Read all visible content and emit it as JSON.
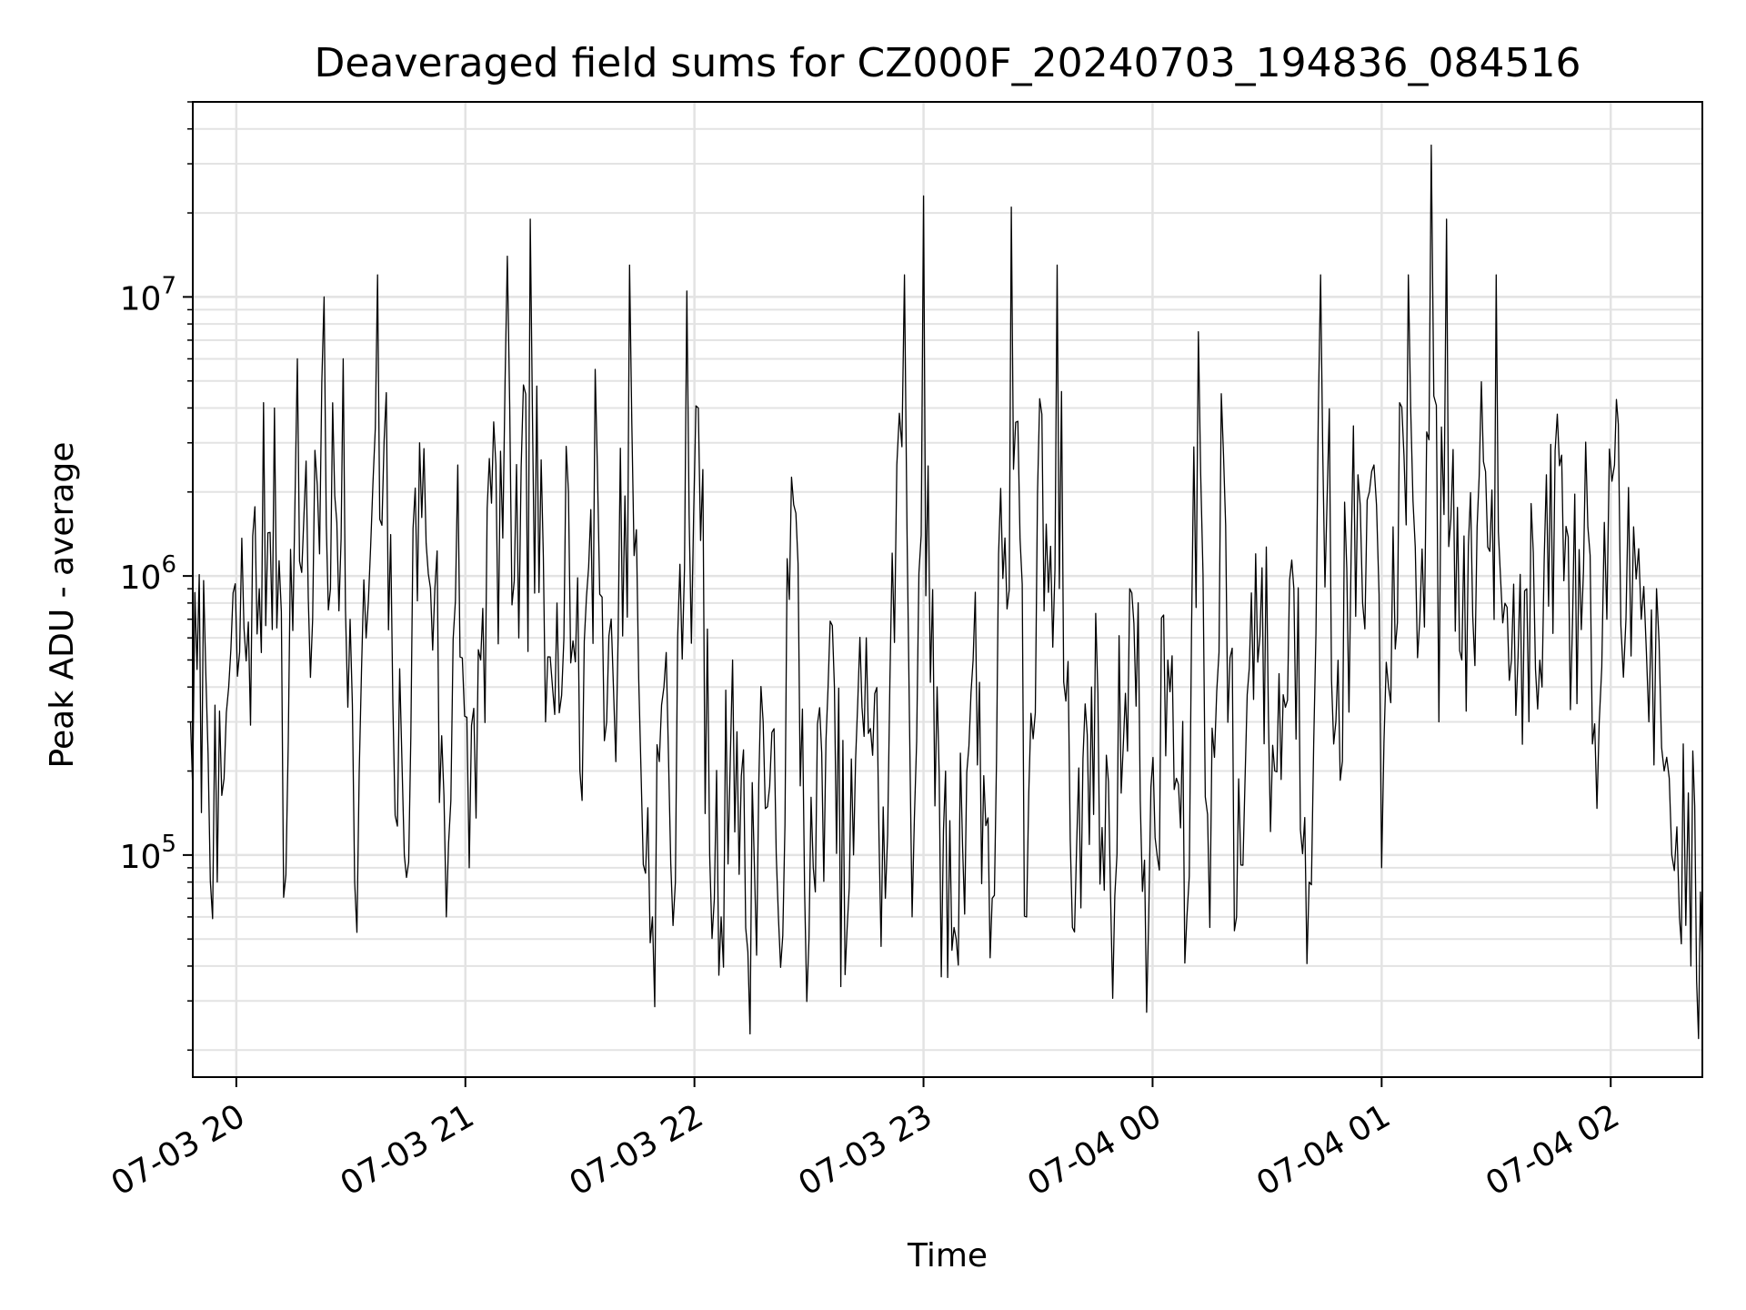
{
  "chart_data": {
    "type": "line",
    "title": "Deaveraged field sums for CZ000F_20240703_194836_084516",
    "xlabel": "Time",
    "ylabel": "Peak ADU - average",
    "yscale": "log",
    "xlim": [
      "2024-07-03 19:48:36",
      "2024-07-04 02:24:00"
    ],
    "ylim": [
      16000,
      50000000
    ],
    "grid": true,
    "legend": "none",
    "x_ticks": [
      {
        "value": "2024-07-03 20:00",
        "label": "07-03 20"
      },
      {
        "value": "2024-07-03 21:00",
        "label": "07-03 21"
      },
      {
        "value": "2024-07-03 22:00",
        "label": "07-03 22"
      },
      {
        "value": "2024-07-03 23:00",
        "label": "07-03 23"
      },
      {
        "value": "2024-07-04 00:00",
        "label": "07-04 00"
      },
      {
        "value": "2024-07-04 01:00",
        "label": "07-04 01"
      },
      {
        "value": "2024-07-04 02:00",
        "label": "07-04 02"
      }
    ],
    "y_ticks": [
      {
        "value": 100000,
        "base": "10",
        "exp": "5"
      },
      {
        "value": 1000000,
        "base": "10",
        "exp": "6"
      },
      {
        "value": 10000000,
        "base": "10",
        "exp": "7"
      }
    ],
    "colors": {
      "line": "#000000",
      "grid": "#e3e3e3",
      "axes": "#000000"
    },
    "series": [
      {
        "points": [
          [
            "2024-07-03 19:48",
            300000
          ],
          [
            "2024-07-03 19:52",
            450000
          ],
          [
            "2024-07-03 19:55",
            80000
          ],
          [
            "2024-07-03 19:58",
            400000
          ],
          [
            "2024-07-03 20:02",
            650000
          ],
          [
            "2024-07-03 20:06",
            900000
          ],
          [
            "2024-07-03 20:10",
            4000000
          ],
          [
            "2024-07-03 20:13",
            85000
          ],
          [
            "2024-07-03 20:16",
            6000000
          ],
          [
            "2024-07-03 20:20",
            700000
          ],
          [
            "2024-07-03 20:23",
            10000000
          ],
          [
            "2024-07-03 20:28",
            6000000
          ],
          [
            "2024-07-03 20:31",
            80000
          ],
          [
            "2024-07-03 20:34",
            600000
          ],
          [
            "2024-07-03 20:37",
            12000000
          ],
          [
            "2024-07-03 20:41",
            350000
          ],
          [
            "2024-07-03 20:44",
            100000
          ],
          [
            "2024-07-03 20:48",
            3000000
          ],
          [
            "2024-07-03 20:52",
            900000
          ],
          [
            "2024-07-03 20:55",
            60000
          ],
          [
            "2024-07-03 20:58",
            2500000
          ],
          [
            "2024-07-03 21:01",
            90000
          ],
          [
            "2024-07-03 21:04",
            500000
          ],
          [
            "2024-07-03 21:08",
            2500000
          ],
          [
            "2024-07-03 21:11",
            14000000
          ],
          [
            "2024-07-03 21:14",
            600000
          ],
          [
            "2024-07-03 21:17",
            19000000
          ],
          [
            "2024-07-03 21:21",
            300000
          ],
          [
            "2024-07-03 21:24",
            800000
          ],
          [
            "2024-07-03 21:27",
            2000000
          ],
          [
            "2024-07-03 21:30",
            200000
          ],
          [
            "2024-07-03 21:34",
            5500000
          ],
          [
            "2024-07-03 21:37",
            300000
          ],
          [
            "2024-07-03 21:40",
            600000
          ],
          [
            "2024-07-03 21:43",
            13000000
          ],
          [
            "2024-07-03 21:46",
            200000
          ],
          [
            "2024-07-03 21:49",
            60000
          ],
          [
            "2024-07-03 21:52",
            400000
          ],
          [
            "2024-07-03 21:55",
            80000
          ],
          [
            "2024-07-03 21:58",
            10500000
          ],
          [
            "2024-07-03 22:01",
            4000000
          ],
          [
            "2024-07-03 22:04",
            100000
          ],
          [
            "2024-07-03 22:07",
            60000
          ],
          [
            "2024-07-03 22:10",
            500000
          ],
          [
            "2024-07-03 22:14",
            45000
          ],
          [
            "2024-07-03 22:18",
            300000
          ],
          [
            "2024-07-03 22:22",
            60000
          ],
          [
            "2024-07-03 22:26",
            1800000
          ],
          [
            "2024-07-03 22:30",
            50000
          ],
          [
            "2024-07-03 22:35",
            400000
          ],
          [
            "2024-07-03 22:40",
            55000
          ],
          [
            "2024-07-03 22:45",
            600000
          ],
          [
            "2024-07-03 22:50",
            70000
          ],
          [
            "2024-07-03 22:53",
            2500000
          ],
          [
            "2024-07-03 22:55",
            12000000
          ],
          [
            "2024-07-03 22:57",
            60000
          ],
          [
            "2024-07-03 23:00",
            23000000
          ],
          [
            "2024-07-03 23:03",
            150000
          ],
          [
            "2024-07-03 23:08",
            55000
          ],
          [
            "2024-07-03 23:13",
            500000
          ],
          [
            "2024-07-03 23:18",
            70000
          ],
          [
            "2024-07-03 23:23",
            21000000
          ],
          [
            "2024-07-03 23:27",
            60000
          ],
          [
            "2024-07-03 23:31",
            3800000
          ],
          [
            "2024-07-03 23:35",
            13000000
          ],
          [
            "2024-07-03 23:39",
            55000
          ],
          [
            "2024-07-03 23:44",
            400000
          ],
          [
            "2024-07-03 23:49",
            70000
          ],
          [
            "2024-07-03 23:54",
            900000
          ],
          [
            "2024-07-03 23:59",
            60000
          ],
          [
            "2024-07-04 00:04",
            500000
          ],
          [
            "2024-07-04 00:09",
            60000
          ],
          [
            "2024-07-04 00:12",
            7500000
          ],
          [
            "2024-07-04 00:15",
            55000
          ],
          [
            "2024-07-04 00:18",
            4500000
          ],
          [
            "2024-07-04 00:22",
            60000
          ],
          [
            "2024-07-04 00:27",
            1200000
          ],
          [
            "2024-07-04 00:32",
            200000
          ],
          [
            "2024-07-04 00:37",
            900000
          ],
          [
            "2024-07-04 00:41",
            80000
          ],
          [
            "2024-07-04 00:44",
            12000000
          ],
          [
            "2024-07-04 00:48",
            300000
          ],
          [
            "2024-07-04 00:52",
            1200000
          ],
          [
            "2024-07-04 00:55",
            800000
          ],
          [
            "2024-07-04 00:58",
            2500000
          ],
          [
            "2024-07-04 01:00",
            90000
          ],
          [
            "2024-07-04 01:03",
            1500000
          ],
          [
            "2024-07-04 01:07",
            12000000
          ],
          [
            "2024-07-04 01:10",
            700000
          ],
          [
            "2024-07-04 01:13",
            35000000
          ],
          [
            "2024-07-04 01:15",
            300000
          ],
          [
            "2024-07-04 01:17",
            19000000
          ],
          [
            "2024-07-04 01:21",
            500000
          ],
          [
            "2024-07-04 01:25",
            1500000
          ],
          [
            "2024-07-04 01:30",
            12000000
          ],
          [
            "2024-07-04 01:34",
            500000
          ],
          [
            "2024-07-04 01:38",
            900000
          ],
          [
            "2024-07-04 01:42",
            400000
          ],
          [
            "2024-07-04 01:46",
            3800000
          ],
          [
            "2024-07-04 01:50",
            700000
          ],
          [
            "2024-07-04 01:54",
            1500000
          ],
          [
            "2024-07-04 01:57",
            300000
          ],
          [
            "2024-07-04 01:59",
            700000
          ],
          [
            "2024-07-04 02:01",
            2500000
          ],
          [
            "2024-07-04 02:02",
            3500000
          ],
          [
            "2024-07-04 02:04",
            700000
          ],
          [
            "2024-07-04 02:06",
            1500000
          ],
          [
            "2024-07-04 02:08",
            700000
          ],
          [
            "2024-07-04 02:10",
            300000
          ],
          [
            "2024-07-04 02:12",
            900000
          ],
          [
            "2024-07-04 02:14",
            200000
          ],
          [
            "2024-07-04 02:16",
            100000
          ],
          [
            "2024-07-04 02:18",
            60000
          ],
          [
            "2024-07-04 02:19",
            250000
          ],
          [
            "2024-07-04 02:21",
            40000
          ],
          [
            "2024-07-04 02:22",
            150000
          ],
          [
            "2024-07-04 02:23",
            22000
          ],
          [
            "2024-07-04 02:24",
            40000
          ]
        ]
      }
    ]
  }
}
